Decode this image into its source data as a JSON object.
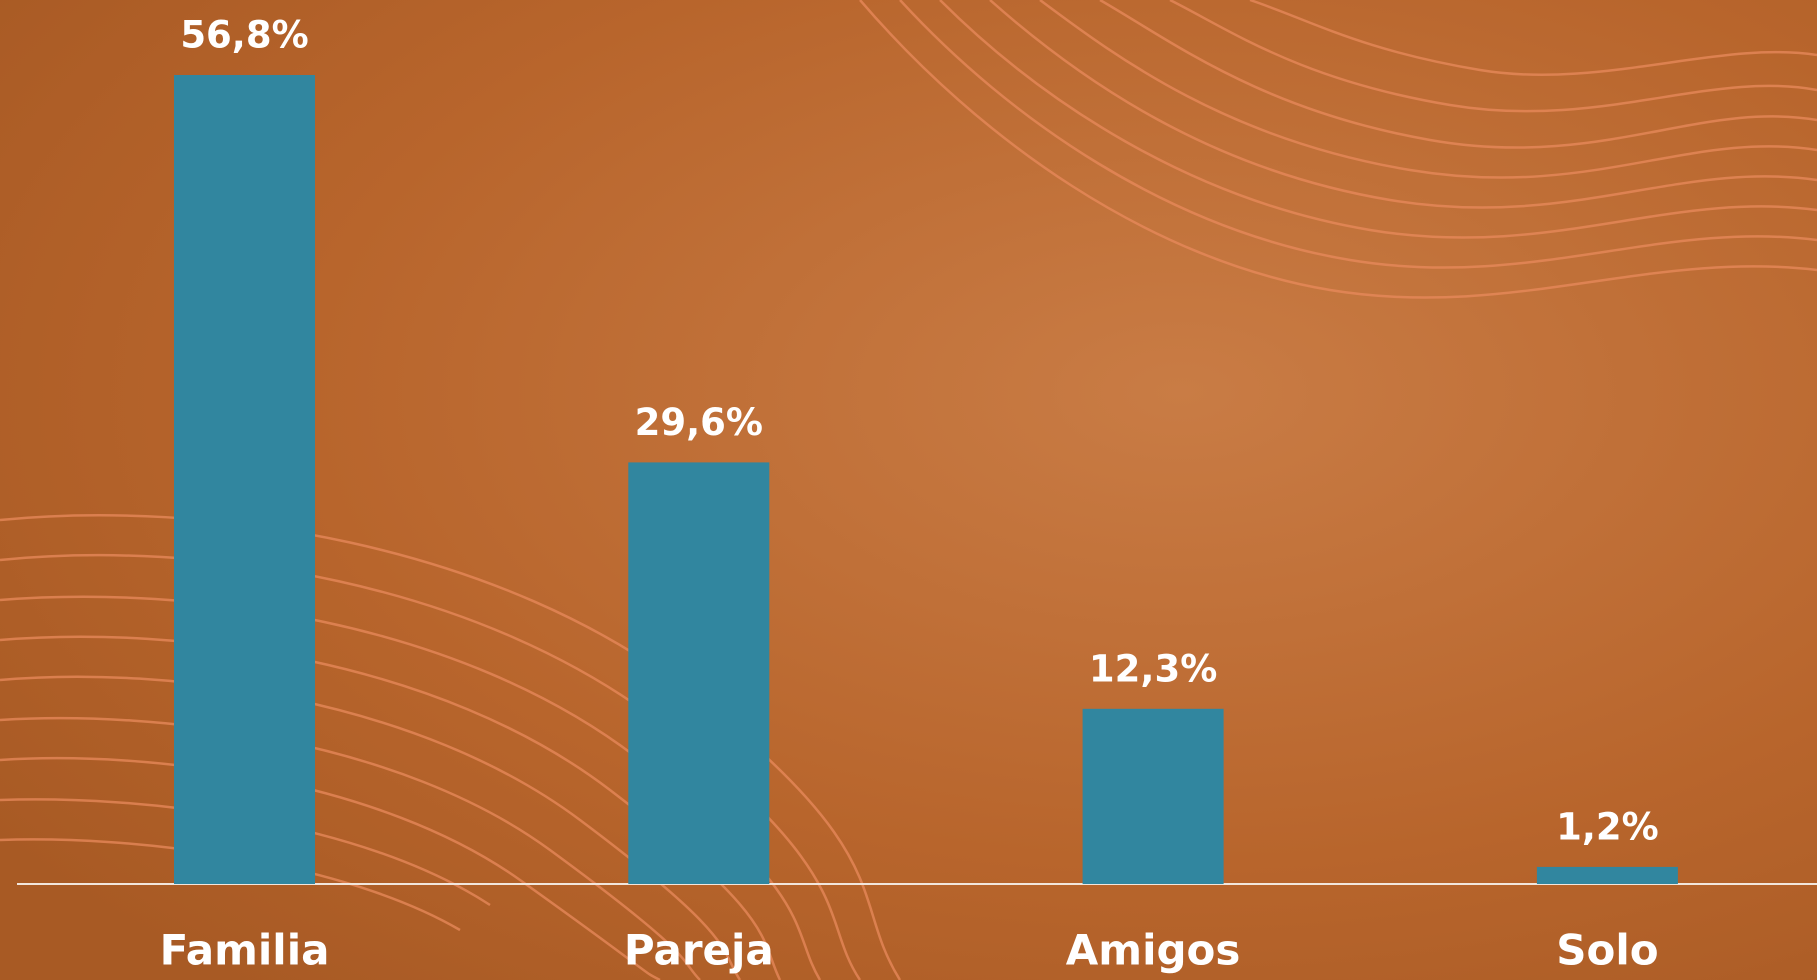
{
  "chart_data": {
    "type": "bar",
    "categories": [
      "Familia",
      "Pareja",
      "Amigos",
      "Solo"
    ],
    "values": [
      56.8,
      29.6,
      12.3,
      1.2
    ],
    "value_labels": [
      "56,8%",
      "29,6%",
      "12,3%",
      "1,2%"
    ],
    "color": "#31869f"
  }
}
